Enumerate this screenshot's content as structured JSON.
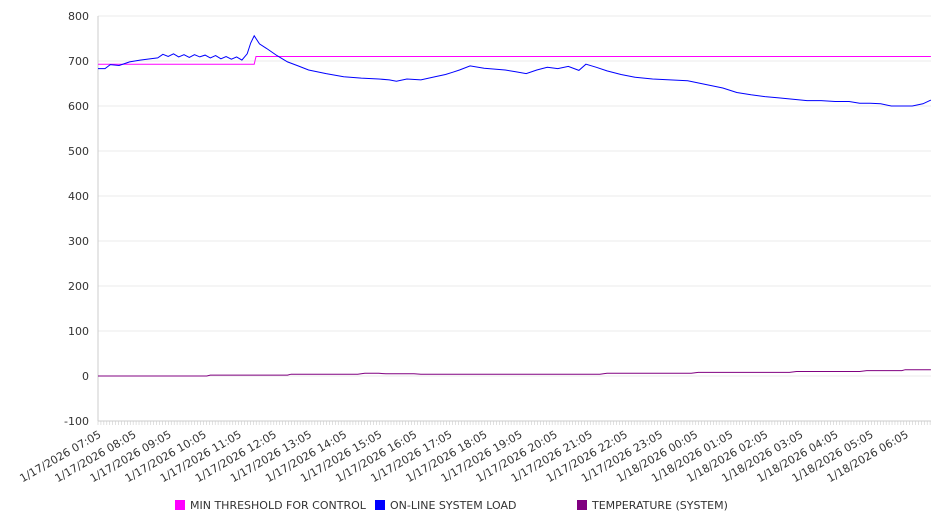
{
  "chart_data": {
    "type": "line",
    "title": "",
    "xlabel": "",
    "ylabel": "",
    "ylim": [
      -100,
      800
    ],
    "yticks": [
      800,
      700,
      600,
      500,
      400,
      300,
      200,
      100,
      0,
      -100
    ],
    "x_unit": "hours since 1/17/2026 07:05",
    "xlim": [
      0,
      23.73
    ],
    "xtick_labels": [
      "1/17/2026 07:05",
      "1/17/2026 08:05",
      "1/17/2026 09:05",
      "1/17/2026 10:05",
      "1/17/2026 11:05",
      "1/17/2026 12:05",
      "1/17/2026 13:05",
      "1/17/2026 14:05",
      "1/17/2026 15:05",
      "1/17/2026 16:05",
      "1/17/2026 17:05",
      "1/17/2026 18:05",
      "1/17/2026 19:05",
      "1/17/2026 20:05",
      "1/17/2026 21:05",
      "1/17/2026 22:05",
      "1/17/2026 23:05",
      "1/18/2026 00:05",
      "1/18/2026 01:05",
      "1/18/2026 02:05",
      "1/18/2026 03:05",
      "1/18/2026 04:05",
      "1/18/2026 05:05",
      "1/18/2026 06:05"
    ],
    "grid": true,
    "legend_position": "bottom",
    "series": [
      {
        "name": "MIN THRESHOLD FOR CONTROL",
        "color": "#ff00ff",
        "x": [
          0,
          4.45,
          4.5,
          23.73
        ],
        "y": [
          693,
          693,
          710,
          710
        ]
      },
      {
        "name": "ON-LINE SYSTEM LOAD",
        "color": "#0000ff",
        "x": [
          0,
          0.2,
          0.35,
          0.6,
          0.9,
          1.2,
          1.5,
          1.7,
          1.85,
          2.0,
          2.15,
          2.3,
          2.45,
          2.6,
          2.75,
          2.9,
          3.05,
          3.2,
          3.35,
          3.5,
          3.65,
          3.8,
          3.95,
          4.1,
          4.25,
          4.35,
          4.45,
          4.6,
          4.8,
          5.1,
          5.4,
          5.7,
          6.0,
          6.5,
          7.0,
          7.5,
          8.0,
          8.3,
          8.5,
          8.8,
          9.2,
          9.6,
          9.9,
          10.1,
          10.3,
          10.6,
          11.0,
          11.3,
          11.6,
          11.9,
          12.2,
          12.5,
          12.8,
          13.1,
          13.4,
          13.7,
          13.9,
          14.2,
          14.5,
          14.9,
          15.3,
          15.8,
          16.3,
          16.8,
          17.3,
          17.8,
          18.2,
          18.6,
          19.0,
          19.4,
          19.8,
          20.2,
          20.6,
          21.0,
          21.4,
          21.7,
          22.0,
          22.3,
          22.6,
          22.9,
          23.2,
          23.5,
          23.73
        ],
        "y": [
          683,
          683,
          692,
          690,
          698,
          702,
          705,
          707,
          715,
          710,
          716,
          709,
          714,
          708,
          714,
          709,
          713,
          707,
          712,
          705,
          710,
          704,
          709,
          702,
          716,
          740,
          756,
          738,
          728,
          712,
          698,
          689,
          680,
          672,
          665,
          662,
          660,
          658,
          655,
          660,
          658,
          665,
          670,
          675,
          680,
          689,
          684,
          682,
          680,
          676,
          672,
          680,
          686,
          683,
          688,
          679,
          693,
          686,
          678,
          670,
          664,
          660,
          658,
          656,
          648,
          640,
          630,
          625,
          621,
          618,
          615,
          612,
          612,
          610,
          610,
          606,
          606,
          605,
          600,
          600,
          600,
          605,
          613
        ]
      },
      {
        "name": "TEMPERATURE (SYSTEM)",
        "color": "#800080",
        "x": [
          0,
          3.1,
          3.2,
          5.4,
          5.5,
          7.4,
          7.6,
          8.0,
          8.2,
          9.0,
          9.2,
          14.3,
          14.5,
          16.9,
          17.1,
          19.7,
          19.9,
          21.7,
          21.9,
          22.9,
          23.0,
          23.73
        ],
        "y": [
          0,
          0,
          2,
          2,
          4,
          4,
          6,
          6,
          5,
          5,
          4,
          4,
          6,
          6,
          8,
          8,
          10,
          10,
          12,
          12,
          14,
          14
        ]
      }
    ]
  }
}
